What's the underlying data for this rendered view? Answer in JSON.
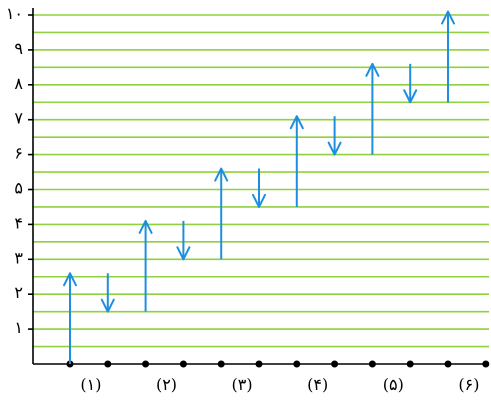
{
  "colors": {
    "grid": "#8fd13f",
    "arrow": "#1e8fe0",
    "axis": "#000000",
    "dot": "#000000"
  },
  "y_axis": {
    "ticks": [
      {
        "value": 1,
        "label": "۱"
      },
      {
        "value": 2,
        "label": "۲"
      },
      {
        "value": 3,
        "label": "۳"
      },
      {
        "value": 4,
        "label": "۴"
      },
      {
        "value": 5,
        "label": "۵"
      },
      {
        "value": 6,
        "label": "۶"
      },
      {
        "value": 7,
        "label": "۷"
      },
      {
        "value": 8,
        "label": "۸"
      },
      {
        "value": 9,
        "label": "۹"
      },
      {
        "value": 10,
        "label": "۱۰"
      }
    ],
    "range": [
      0,
      10
    ]
  },
  "steps": [
    {
      "from": 0,
      "to": 2.6
    },
    {
      "from": 2.6,
      "to": 1.5
    },
    {
      "from": 1.5,
      "to": 4.1
    },
    {
      "from": 4.1,
      "to": 3.0
    },
    {
      "from": 3.0,
      "to": 5.6
    },
    {
      "from": 5.6,
      "to": 4.5
    },
    {
      "from": 4.5,
      "to": 7.1
    },
    {
      "from": 7.1,
      "to": 6.0
    },
    {
      "from": 6.0,
      "to": 8.6
    },
    {
      "from": 8.6,
      "to": 7.5
    },
    {
      "from": 7.5,
      "to": 10.1
    }
  ],
  "groups": [
    {
      "label": "(۱)"
    },
    {
      "label": "(۲)"
    },
    {
      "label": "(۳)"
    },
    {
      "label": "(۴)"
    },
    {
      "label": "(۵)"
    },
    {
      "label": "(۶)"
    }
  ]
}
